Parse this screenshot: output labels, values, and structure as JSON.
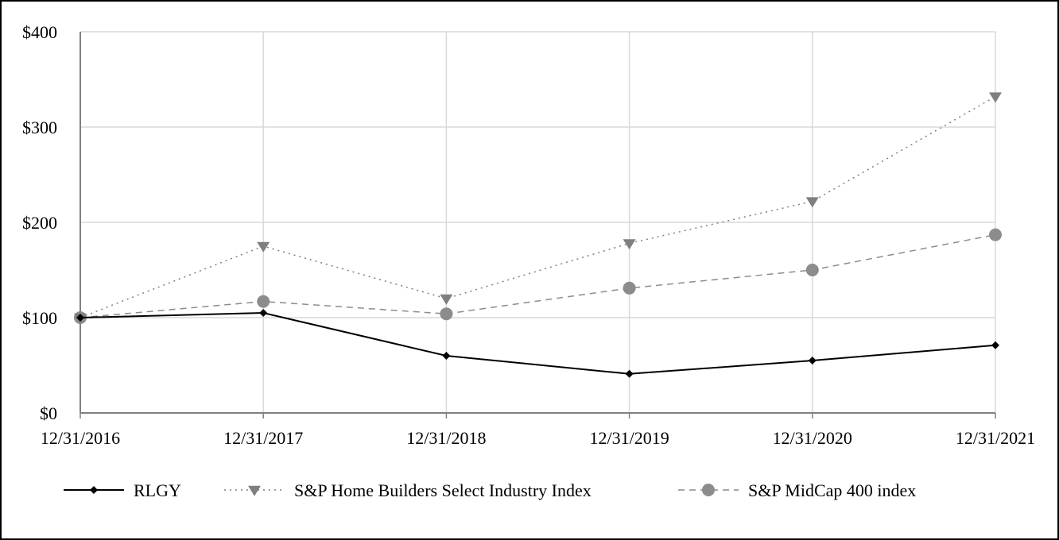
{
  "chart_data": {
    "type": "line",
    "title": "",
    "xlabel": "",
    "ylabel": "",
    "categories": [
      "12/31/2016",
      "12/31/2017",
      "12/31/2018",
      "12/31/2019",
      "12/31/2020",
      "12/31/2021"
    ],
    "ylim": [
      0,
      400
    ],
    "y_ticks": [
      0,
      100,
      200,
      300,
      400
    ],
    "y_tick_labels": [
      "$0",
      "$100",
      "$200",
      "$300",
      "$400"
    ],
    "grid": true,
    "legend_position": "bottom",
    "series": [
      {
        "name": "RLGY",
        "values": [
          100,
          105,
          60,
          41,
          55,
          71
        ],
        "color": "#000000",
        "line_style": "solid",
        "marker": "diamond"
      },
      {
        "name": "S&P Home Builders Select Industry Index",
        "values": [
          100,
          175,
          120,
          178,
          222,
          332
        ],
        "color": "#7f7f7f",
        "line_style": "dotted",
        "marker": "triangle-down"
      },
      {
        "name": "S&P MidCap 400 index",
        "values": [
          100,
          117,
          104,
          131,
          150,
          187
        ],
        "color": "#8c8c8c",
        "line_style": "dashed",
        "marker": "circle"
      }
    ]
  }
}
